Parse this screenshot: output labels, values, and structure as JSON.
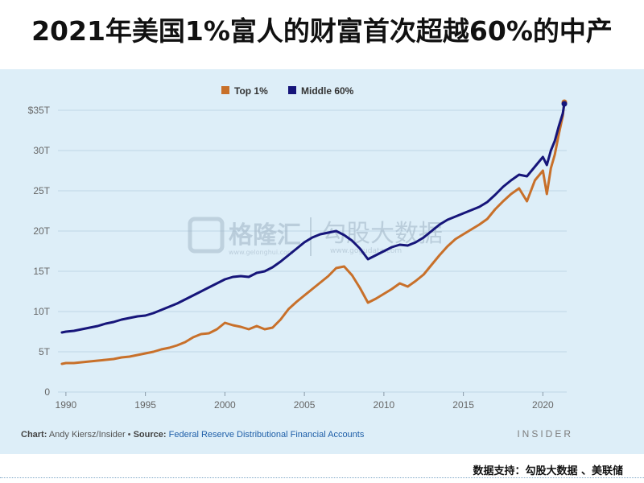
{
  "headline": "2021年美国1%富人的财富首次超越60%的中产",
  "footer": "数据支持：勾股大数据 、美联储",
  "watermark": {
    "name": "格隆汇",
    "site": "www.gelonghui.com",
    "brand": "勾股大数据",
    "brand_site": "www.gogudata.com"
  },
  "caption": {
    "chart_label": "Chart:",
    "chart_author": "Andy Kiersz/Insider",
    "bullet": "•",
    "source_label": "Source:",
    "source_text": "Federal Reserve Distributional Financial Accounts",
    "brand": "INSIDER"
  },
  "colors": {
    "top": "#c8702a",
    "middle": "#16157a",
    "panel": "#ddeef8",
    "grid": "#bfd6e6"
  },
  "chart_data": {
    "type": "line",
    "title": "2021年美国1%富人的财富首次超越60%的中产",
    "xlabel": "",
    "ylabel": "",
    "xlim": [
      1989.5,
      2021.5
    ],
    "ylim": [
      0,
      35
    ],
    "x_ticks": [
      1990,
      1995,
      2000,
      2005,
      2010,
      2015,
      2020
    ],
    "x_tick_labels": [
      "1990",
      "1995",
      "2000",
      "2005",
      "2010",
      "2015",
      "2020"
    ],
    "y_ticks": [
      0,
      5,
      10,
      15,
      20,
      25,
      30,
      35
    ],
    "y_tick_labels": [
      "0",
      "5T",
      "10T",
      "15T",
      "20T",
      "25T",
      "30T",
      "$35T"
    ],
    "grid": true,
    "legend_position": "top-center",
    "series": [
      {
        "name": "Top 1%",
        "color": "#c8702a",
        "points": [
          [
            1989.75,
            3.5
          ],
          [
            1990,
            3.6
          ],
          [
            1990.5,
            3.6
          ],
          [
            1991,
            3.7
          ],
          [
            1991.5,
            3.8
          ],
          [
            1992,
            3.9
          ],
          [
            1992.5,
            4.0
          ],
          [
            1993,
            4.1
          ],
          [
            1993.5,
            4.3
          ],
          [
            1994,
            4.4
          ],
          [
            1994.5,
            4.6
          ],
          [
            1995,
            4.8
          ],
          [
            1995.5,
            5.0
          ],
          [
            1996,
            5.3
          ],
          [
            1996.5,
            5.5
          ],
          [
            1997,
            5.8
          ],
          [
            1997.5,
            6.2
          ],
          [
            1998,
            6.8
          ],
          [
            1998.5,
            7.2
          ],
          [
            1999,
            7.3
          ],
          [
            1999.5,
            7.8
          ],
          [
            2000,
            8.6
          ],
          [
            2000.5,
            8.3
          ],
          [
            2001,
            8.1
          ],
          [
            2001.5,
            7.8
          ],
          [
            2002,
            8.2
          ],
          [
            2002.5,
            7.8
          ],
          [
            2003,
            8.0
          ],
          [
            2003.5,
            9.0
          ],
          [
            2004,
            10.3
          ],
          [
            2004.5,
            11.2
          ],
          [
            2005,
            12.0
          ],
          [
            2005.5,
            12.8
          ],
          [
            2006,
            13.6
          ],
          [
            2006.5,
            14.4
          ],
          [
            2007,
            15.4
          ],
          [
            2007.5,
            15.6
          ],
          [
            2008,
            14.5
          ],
          [
            2008.5,
            12.9
          ],
          [
            2009,
            11.1
          ],
          [
            2009.5,
            11.6
          ],
          [
            2010,
            12.2
          ],
          [
            2010.5,
            12.8
          ],
          [
            2011,
            13.5
          ],
          [
            2011.5,
            13.1
          ],
          [
            2012,
            13.8
          ],
          [
            2012.5,
            14.6
          ],
          [
            2013,
            15.8
          ],
          [
            2013.5,
            17.0
          ],
          [
            2014,
            18.1
          ],
          [
            2014.5,
            19.0
          ],
          [
            2015,
            19.6
          ],
          [
            2015.5,
            20.2
          ],
          [
            2016,
            20.8
          ],
          [
            2016.5,
            21.5
          ],
          [
            2017,
            22.7
          ],
          [
            2017.5,
            23.7
          ],
          [
            2018,
            24.6
          ],
          [
            2018.5,
            25.3
          ],
          [
            2019,
            23.7
          ],
          [
            2019.5,
            26.3
          ],
          [
            2020,
            27.5
          ],
          [
            2020.25,
            24.6
          ],
          [
            2020.5,
            27.8
          ],
          [
            2020.75,
            29.5
          ],
          [
            2021,
            32.0
          ],
          [
            2021.25,
            34.3
          ],
          [
            2021.35,
            36.0
          ]
        ]
      },
      {
        "name": "Middle 60%",
        "color": "#16157a",
        "points": [
          [
            1989.75,
            7.4
          ],
          [
            1990,
            7.5
          ],
          [
            1990.5,
            7.6
          ],
          [
            1991,
            7.8
          ],
          [
            1991.5,
            8.0
          ],
          [
            1992,
            8.2
          ],
          [
            1992.5,
            8.5
          ],
          [
            1993,
            8.7
          ],
          [
            1993.5,
            9.0
          ],
          [
            1994,
            9.2
          ],
          [
            1994.5,
            9.4
          ],
          [
            1995,
            9.5
          ],
          [
            1995.5,
            9.8
          ],
          [
            1996,
            10.2
          ],
          [
            1996.5,
            10.6
          ],
          [
            1997,
            11.0
          ],
          [
            1997.5,
            11.5
          ],
          [
            1998,
            12.0
          ],
          [
            1998.5,
            12.5
          ],
          [
            1999,
            13.0
          ],
          [
            1999.5,
            13.5
          ],
          [
            2000,
            14.0
          ],
          [
            2000.5,
            14.3
          ],
          [
            2001,
            14.4
          ],
          [
            2001.5,
            14.3
          ],
          [
            2002,
            14.8
          ],
          [
            2002.5,
            15.0
          ],
          [
            2003,
            15.5
          ],
          [
            2003.5,
            16.2
          ],
          [
            2004,
            17.0
          ],
          [
            2004.5,
            17.8
          ],
          [
            2005,
            18.6
          ],
          [
            2005.5,
            19.2
          ],
          [
            2006,
            19.6
          ],
          [
            2006.5,
            19.8
          ],
          [
            2007,
            20.0
          ],
          [
            2007.5,
            19.5
          ],
          [
            2008,
            18.8
          ],
          [
            2008.5,
            17.8
          ],
          [
            2009,
            16.5
          ],
          [
            2009.5,
            17.0
          ],
          [
            2010,
            17.5
          ],
          [
            2010.5,
            18.0
          ],
          [
            2011,
            18.3
          ],
          [
            2011.5,
            18.2
          ],
          [
            2012,
            18.6
          ],
          [
            2012.5,
            19.2
          ],
          [
            2013,
            20.0
          ],
          [
            2013.5,
            20.8
          ],
          [
            2014,
            21.4
          ],
          [
            2014.5,
            21.8
          ],
          [
            2015,
            22.2
          ],
          [
            2015.5,
            22.6
          ],
          [
            2016,
            23.0
          ],
          [
            2016.5,
            23.6
          ],
          [
            2017,
            24.5
          ],
          [
            2017.5,
            25.5
          ],
          [
            2018,
            26.3
          ],
          [
            2018.5,
            27.0
          ],
          [
            2019,
            26.8
          ],
          [
            2019.5,
            28.0
          ],
          [
            2020,
            29.2
          ],
          [
            2020.25,
            28.2
          ],
          [
            2020.5,
            30.0
          ],
          [
            2020.75,
            31.2
          ],
          [
            2021,
            33.0
          ],
          [
            2021.25,
            34.6
          ],
          [
            2021.35,
            35.8
          ]
        ]
      }
    ]
  }
}
